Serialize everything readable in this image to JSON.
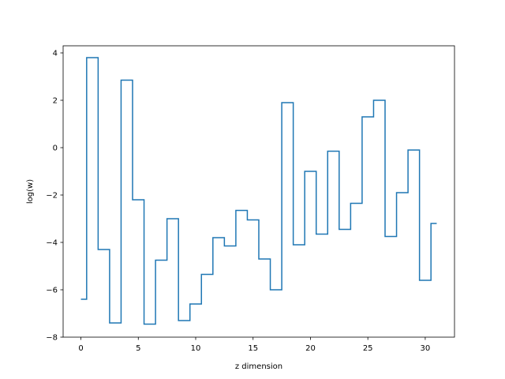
{
  "chart_data": {
    "type": "line",
    "drawstyle": "steps-mid",
    "xlabel": "z dimension",
    "ylabel": "log(w)",
    "xlim": [
      -1.55,
      32.55
    ],
    "ylim": [
      -8.0,
      4.3
    ],
    "xticks": [
      0,
      5,
      10,
      15,
      20,
      25,
      30
    ],
    "yticks": [
      -8,
      -6,
      -4,
      -2,
      0,
      2,
      4
    ],
    "grid": false,
    "color": "#1f77b4",
    "x": [
      0,
      1,
      2,
      3,
      4,
      5,
      6,
      7,
      8,
      9,
      10,
      11,
      12,
      13,
      14,
      15,
      16,
      17,
      18,
      19,
      20,
      21,
      22,
      23,
      24,
      25,
      26,
      27,
      28,
      29,
      30,
      31
    ],
    "y": [
      -6.4,
      3.8,
      -4.3,
      -7.4,
      2.85,
      -2.2,
      -7.45,
      -4.75,
      -3.0,
      -7.3,
      -6.6,
      -5.35,
      -3.8,
      -4.15,
      -2.65,
      -3.05,
      -4.7,
      -6.0,
      1.9,
      -4.1,
      -1.0,
      -3.65,
      -0.15,
      -3.45,
      -2.35,
      1.3,
      2.0,
      -3.75,
      -1.9,
      -0.1,
      -5.6,
      -3.2
    ]
  }
}
